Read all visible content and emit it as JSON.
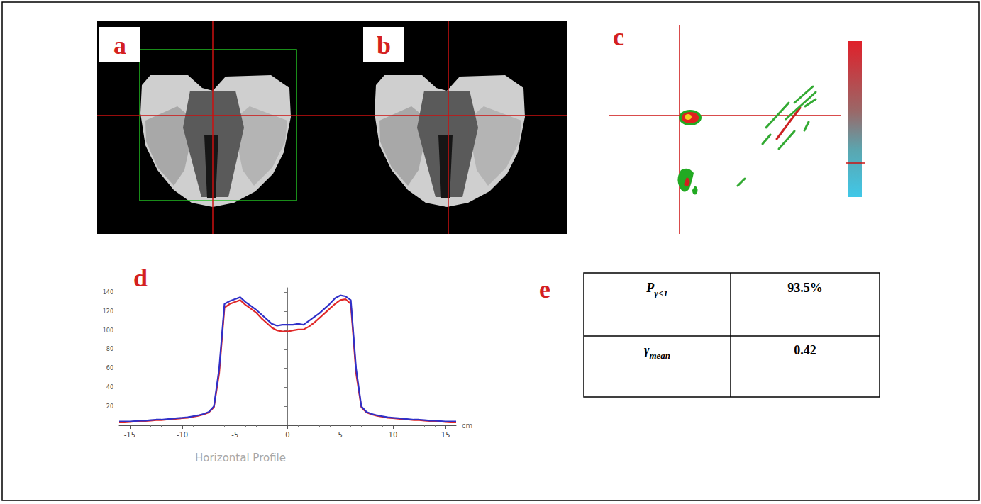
{
  "panels": [
    {
      "label": "a"
    },
    {
      "label": "b"
    },
    {
      "label": "c"
    },
    {
      "label": "d"
    },
    {
      "label": "e"
    }
  ],
  "chart_data": {
    "type": "line",
    "xlabel": "Horizontal Profile",
    "x_unit": "cm",
    "grid": false,
    "x": [
      -16,
      -15.5,
      -15,
      -14.5,
      -14,
      -13.5,
      -13,
      -12.5,
      -12,
      -11.5,
      -11,
      -10.5,
      -10,
      -9.5,
      -9,
      -8.5,
      -8,
      -7.5,
      -7,
      -6.5,
      -6,
      -5.5,
      -5,
      -4.5,
      -4,
      -3.5,
      -3,
      -2.5,
      -2,
      -1.5,
      -1,
      -0.5,
      0,
      0.5,
      1,
      1.5,
      2,
      2.5,
      3,
      3.5,
      4,
      4.5,
      5,
      5.5,
      6,
      6.5,
      7,
      7.5,
      8,
      8.5,
      9,
      9.5,
      10,
      10.5,
      11,
      11.5,
      12,
      12.5,
      13,
      13.5,
      14,
      14.5,
      15,
      15.5,
      16
    ],
    "xlim": [
      -16,
      16
    ],
    "xticks": [
      -15,
      -10,
      -5,
      0,
      5,
      10,
      15
    ],
    "ylim": [
      0,
      145
    ],
    "yticks": [
      20,
      40,
      60,
      80,
      100,
      120,
      140
    ],
    "series": [
      {
        "color": "#e02828",
        "values": [
          3,
          3,
          3.5,
          4,
          4,
          4.5,
          5,
          5.5,
          5.5,
          6,
          6.5,
          7,
          7.5,
          8,
          9,
          10,
          11.5,
          13.5,
          19,
          55,
          124,
          128,
          130,
          132,
          127,
          123,
          119,
          113,
          108,
          103,
          100,
          99,
          99,
          100,
          101,
          101,
          104,
          108,
          113,
          118,
          123,
          128,
          132,
          133,
          128,
          55,
          19,
          13.5,
          11.5,
          10,
          9,
          8,
          7.5,
          7,
          6.5,
          6,
          5.5,
          5.5,
          5,
          4.5,
          4,
          4,
          3.5,
          3,
          3
        ]
      },
      {
        "color": "#3030c8",
        "values": [
          4,
          4,
          4,
          4.5,
          5,
          5,
          5.5,
          6,
          6,
          6.5,
          7,
          7.5,
          8,
          8.5,
          9.5,
          10.5,
          12,
          14,
          20,
          60,
          128,
          131,
          133,
          135,
          130,
          126,
          122,
          117,
          112,
          107,
          105,
          106,
          106,
          106,
          107,
          106,
          110,
          114,
          118,
          123,
          128,
          134,
          137,
          136,
          132,
          60,
          20,
          14,
          12,
          10.5,
          9.5,
          8.5,
          8,
          7.5,
          7,
          6.5,
          6,
          6,
          5.5,
          5,
          5,
          4.5,
          4,
          4,
          4
        ]
      }
    ]
  },
  "table": {
    "rows": [
      [
        {
          "base": "P",
          "sub": "γ<1"
        },
        "93.5%"
      ],
      [
        {
          "base": "γ",
          "sub": "mean"
        },
        "0.42"
      ]
    ]
  }
}
